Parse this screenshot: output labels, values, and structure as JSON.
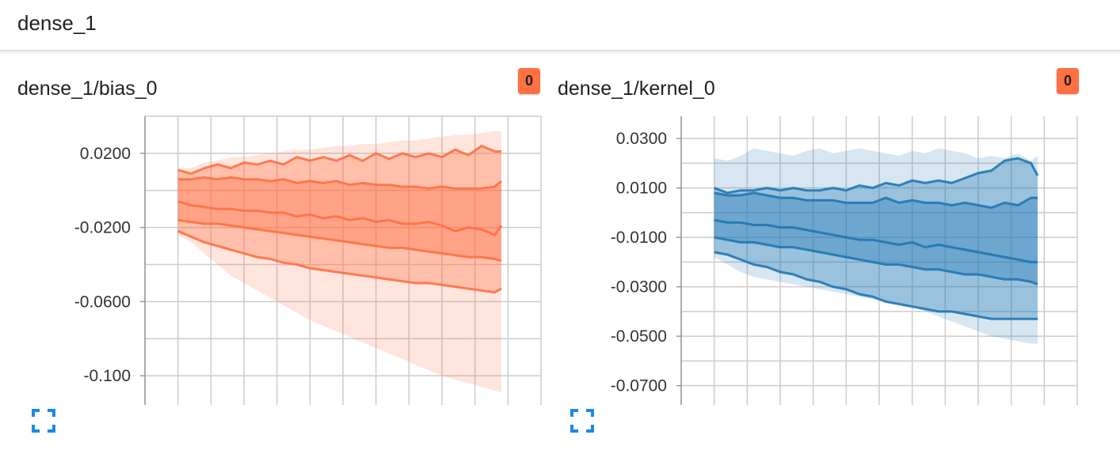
{
  "section": {
    "title": "dense_1"
  },
  "badge_color": "#ff7043",
  "expand_icon": "fullscreen-icon",
  "expand_icon_color": "#1e88e5",
  "chart_data": [
    {
      "type": "area",
      "title": "dense_1/bias_0",
      "badge": "0",
      "color": "#ff7043",
      "x": [
        0,
        2,
        4,
        6,
        8,
        10,
        12,
        14,
        16,
        18,
        20,
        22,
        24,
        26,
        28,
        30,
        32,
        34,
        36,
        38,
        40,
        42,
        44,
        46,
        48,
        49
      ],
      "xlim": [
        -5,
        55
      ],
      "ylim": [
        -0.12,
        0.04
      ],
      "xticks": [
        "0.000",
        "10.00",
        "20.00",
        "30.00",
        "40.00",
        "50.00"
      ],
      "xtick_values": [
        0,
        10,
        20,
        30,
        40,
        50
      ],
      "yticks": [
        "0.0200",
        "-0.0200",
        "-0.0600",
        "-0.100"
      ],
      "ytick_values": [
        0.02,
        -0.02,
        -0.06,
        -0.1
      ],
      "grid": true,
      "series": [
        {
          "values": [
            0.012,
            0.012,
            0.015,
            0.016,
            0.018,
            0.018,
            0.019,
            0.02,
            0.021,
            0.022,
            0.022,
            0.023,
            0.024,
            0.024,
            0.025,
            0.025,
            0.026,
            0.027,
            0.027,
            0.028,
            0.029,
            0.03,
            0.03,
            0.031,
            0.032,
            0.032
          ]
        },
        {
          "values": [
            0.011,
            0.009,
            0.012,
            0.014,
            0.012,
            0.015,
            0.014,
            0.016,
            0.014,
            0.018,
            0.016,
            0.018,
            0.016,
            0.019,
            0.016,
            0.02,
            0.017,
            0.02,
            0.018,
            0.02,
            0.018,
            0.022,
            0.019,
            0.024,
            0.021,
            0.021
          ]
        },
        {
          "values": [
            0.006,
            0.006,
            0.007,
            0.006,
            0.007,
            0.006,
            0.006,
            0.005,
            0.006,
            0.004,
            0.005,
            0.004,
            0.005,
            0.003,
            0.004,
            0.003,
            0.003,
            0.002,
            0.002,
            0.001,
            0.002,
            0.001,
            0.001,
            0.001,
            0.002,
            0.005
          ]
        },
        {
          "values": [
            -0.006,
            -0.008,
            -0.009,
            -0.01,
            -0.01,
            -0.011,
            -0.011,
            -0.012,
            -0.012,
            -0.014,
            -0.013,
            -0.015,
            -0.014,
            -0.016,
            -0.015,
            -0.017,
            -0.016,
            -0.018,
            -0.018,
            -0.017,
            -0.019,
            -0.022,
            -0.02,
            -0.021,
            -0.024,
            -0.019
          ]
        },
        {
          "values": [
            -0.016,
            -0.017,
            -0.018,
            -0.018,
            -0.019,
            -0.02,
            -0.021,
            -0.022,
            -0.023,
            -0.024,
            -0.025,
            -0.026,
            -0.027,
            -0.028,
            -0.029,
            -0.03,
            -0.031,
            -0.031,
            -0.032,
            -0.033,
            -0.034,
            -0.035,
            -0.036,
            -0.036,
            -0.037,
            -0.038
          ]
        },
        {
          "values": [
            -0.022,
            -0.025,
            -0.028,
            -0.03,
            -0.032,
            -0.034,
            -0.036,
            -0.037,
            -0.039,
            -0.04,
            -0.042,
            -0.043,
            -0.044,
            -0.045,
            -0.046,
            -0.047,
            -0.048,
            -0.049,
            -0.05,
            -0.05,
            -0.051,
            -0.052,
            -0.053,
            -0.054,
            -0.055,
            -0.053
          ]
        },
        {
          "values": [
            -0.024,
            -0.028,
            -0.034,
            -0.04,
            -0.046,
            -0.05,
            -0.054,
            -0.058,
            -0.062,
            -0.066,
            -0.07,
            -0.073,
            -0.076,
            -0.079,
            -0.082,
            -0.085,
            -0.088,
            -0.091,
            -0.094,
            -0.097,
            -0.1,
            -0.102,
            -0.104,
            -0.106,
            -0.108,
            -0.109
          ]
        }
      ]
    },
    {
      "type": "area",
      "title": "dense_1/kernel_0",
      "badge": "0",
      "color": "#1f77b4",
      "x": [
        0,
        2,
        4,
        6,
        8,
        10,
        12,
        14,
        16,
        18,
        20,
        22,
        24,
        26,
        28,
        30,
        32,
        34,
        36,
        38,
        40,
        42,
        44,
        46,
        48,
        49
      ],
      "xlim": [
        -5,
        55
      ],
      "ylim": [
        -0.081,
        0.039
      ],
      "xticks": [
        "0.000",
        "10.00",
        "20.00",
        "30.00",
        "40.00",
        "50.00"
      ],
      "xtick_values": [
        0,
        10,
        20,
        30,
        40,
        50
      ],
      "yticks": [
        "0.0300",
        "0.0100",
        "-0.0100",
        "-0.0300",
        "-0.0500",
        "-0.0700"
      ],
      "ytick_values": [
        0.03,
        0.01,
        -0.01,
        -0.03,
        -0.05,
        -0.07
      ],
      "grid": true,
      "series": [
        {
          "values": [
            0.022,
            0.021,
            0.023,
            0.026,
            0.025,
            0.024,
            0.023,
            0.025,
            0.026,
            0.024,
            0.025,
            0.026,
            0.025,
            0.024,
            0.023,
            0.025,
            0.024,
            0.026,
            0.025,
            0.024,
            0.022,
            0.023,
            0.022,
            0.024,
            0.021,
            0.023
          ]
        },
        {
          "values": [
            0.01,
            0.008,
            0.009,
            0.009,
            0.01,
            0.009,
            0.01,
            0.009,
            0.009,
            0.01,
            0.009,
            0.011,
            0.01,
            0.012,
            0.011,
            0.013,
            0.012,
            0.013,
            0.012,
            0.014,
            0.016,
            0.017,
            0.021,
            0.022,
            0.02,
            0.015
          ]
        },
        {
          "values": [
            0.008,
            0.007,
            0.007,
            0.008,
            0.007,
            0.006,
            0.006,
            0.005,
            0.005,
            0.005,
            0.004,
            0.004,
            0.004,
            0.006,
            0.004,
            0.005,
            0.004,
            0.004,
            0.003,
            0.004,
            0.003,
            0.002,
            0.004,
            0.003,
            0.006,
            0.006
          ]
        },
        {
          "values": [
            -0.003,
            -0.004,
            -0.004,
            -0.005,
            -0.005,
            -0.006,
            -0.006,
            -0.007,
            -0.008,
            -0.009,
            -0.01,
            -0.011,
            -0.011,
            -0.012,
            -0.013,
            -0.012,
            -0.014,
            -0.013,
            -0.014,
            -0.015,
            -0.016,
            -0.017,
            -0.018,
            -0.019,
            -0.02,
            -0.02
          ]
        },
        {
          "values": [
            -0.01,
            -0.011,
            -0.012,
            -0.012,
            -0.013,
            -0.014,
            -0.014,
            -0.015,
            -0.016,
            -0.017,
            -0.018,
            -0.019,
            -0.02,
            -0.021,
            -0.021,
            -0.022,
            -0.023,
            -0.023,
            -0.024,
            -0.025,
            -0.025,
            -0.026,
            -0.027,
            -0.027,
            -0.028,
            -0.029
          ]
        },
        {
          "values": [
            -0.016,
            -0.017,
            -0.019,
            -0.021,
            -0.022,
            -0.024,
            -0.025,
            -0.027,
            -0.028,
            -0.03,
            -0.031,
            -0.033,
            -0.034,
            -0.036,
            -0.037,
            -0.038,
            -0.039,
            -0.04,
            -0.04,
            -0.041,
            -0.042,
            -0.043,
            -0.043,
            -0.043,
            -0.043,
            -0.043
          ]
        },
        {
          "values": [
            -0.018,
            -0.021,
            -0.024,
            -0.026,
            -0.027,
            -0.028,
            -0.029,
            -0.03,
            -0.031,
            -0.032,
            -0.033,
            -0.034,
            -0.035,
            -0.036,
            -0.037,
            -0.038,
            -0.04,
            -0.042,
            -0.044,
            -0.046,
            -0.048,
            -0.05,
            -0.051,
            -0.052,
            -0.053,
            -0.053
          ]
        }
      ]
    }
  ]
}
